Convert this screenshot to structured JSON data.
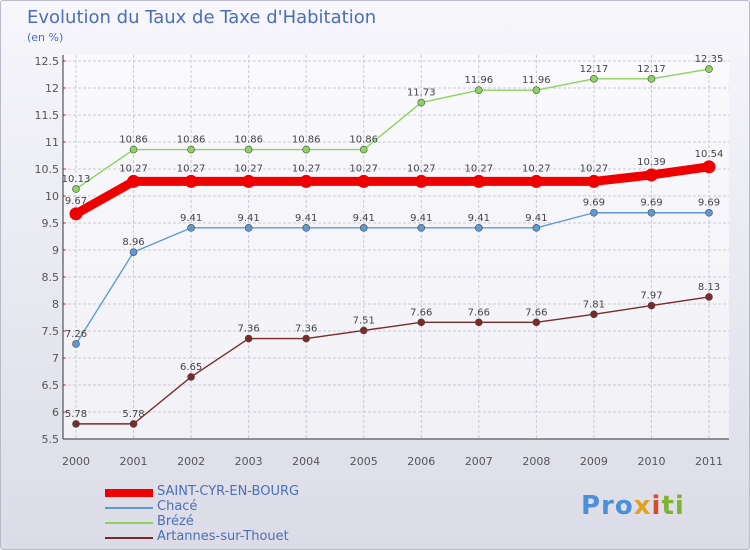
{
  "header": {
    "title": "Evolution du Taux de Taxe d'Habitation",
    "unit": "(en %)"
  },
  "brand": {
    "letters": [
      "Pro",
      "x",
      "i",
      "ti"
    ]
  },
  "chart_data": {
    "type": "line",
    "title": "Evolution du Taux de Taxe d'Habitation",
    "ylabel": "(en %)",
    "x": [
      "2000",
      "2001",
      "2002",
      "2003",
      "2004",
      "2005",
      "2006",
      "2007",
      "2008",
      "2009",
      "2010",
      "2011"
    ],
    "ylim": [
      5.5,
      12.5
    ],
    "yticks": [
      "5.5",
      "6",
      "6.5",
      "7",
      "7.5",
      "8",
      "8.5",
      "9",
      "9.5",
      "10",
      "10.5",
      "11",
      "11.5",
      "12",
      "12.5"
    ],
    "series": [
      {
        "name": "SAINT-CYR-EN-BOURG",
        "color": "#ee0000",
        "thick": true,
        "values": [
          9.67,
          10.27,
          10.27,
          10.27,
          10.27,
          10.27,
          10.27,
          10.27,
          10.27,
          10.27,
          10.39,
          10.54
        ],
        "labels": [
          "9.67",
          "10.27",
          "10.27",
          "10.27",
          "10.27",
          "10.27",
          "10.27",
          "10.27",
          "10.27",
          "10.27",
          "10.39",
          "10.54"
        ]
      },
      {
        "name": "Chacé",
        "color": "#5e9ad2",
        "thick": false,
        "values": [
          7.26,
          8.96,
          9.41,
          9.41,
          9.41,
          9.41,
          9.41,
          9.41,
          9.41,
          9.69,
          9.69,
          9.69
        ],
        "labels": [
          "7.26",
          "8.96",
          "9.41",
          "9.41",
          "9.41",
          "9.41",
          "9.41",
          "9.41",
          "9.41",
          "9.69",
          "9.69",
          "9.69"
        ]
      },
      {
        "name": "Brézé",
        "color": "#8cd460",
        "thick": false,
        "values": [
          10.13,
          10.86,
          10.86,
          10.86,
          10.86,
          10.86,
          11.73,
          11.96,
          11.96,
          12.17,
          12.17,
          12.35
        ],
        "labels": [
          "10.13",
          "10.86",
          "10.86",
          "10.86",
          "10.86",
          "10.86",
          "11.73",
          "11.96",
          "11.96",
          "12.17",
          "12.17",
          "12.35"
        ]
      },
      {
        "name": "Artannes-sur-Thouet",
        "color": "#7a2a2a",
        "thick": false,
        "values": [
          5.78,
          5.78,
          6.65,
          7.36,
          7.36,
          7.51,
          7.66,
          7.66,
          7.66,
          7.81,
          7.97,
          8.13
        ],
        "labels": [
          "5.78",
          "5.78",
          "6.65",
          "7.36",
          "7.36",
          "7.51",
          "7.66",
          "7.66",
          "7.66",
          "7.81",
          "7.97",
          "8.13"
        ]
      }
    ],
    "grid": true,
    "legend_position": "bottom-left"
  }
}
